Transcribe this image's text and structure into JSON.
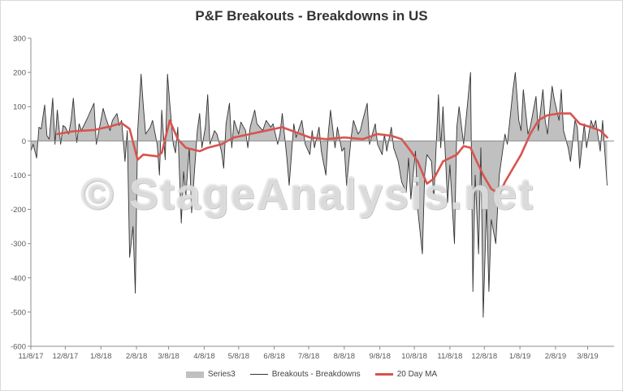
{
  "chart_data": {
    "type": "area",
    "title": "P&F Breakouts - Breakdowns in US",
    "xlabel": "",
    "ylabel": "",
    "ylim": [
      -600,
      300
    ],
    "yticks": [
      300,
      200,
      100,
      0,
      -100,
      -200,
      -300,
      -400,
      -500,
      -600
    ],
    "x_tick_labels": [
      "11/8/17",
      "12/8/17",
      "1/8/18",
      "2/8/18",
      "3/8/18",
      "4/8/18",
      "5/8/18",
      "6/8/18",
      "7/8/18",
      "8/8/18",
      "9/8/18",
      "10/8/18",
      "11/8/18",
      "12/8/18",
      "1/8/19",
      "2/8/19",
      "3/8/19"
    ],
    "x_range": [
      "2017-11-08",
      "2019-03-31"
    ],
    "grid": false,
    "legend_position": "bottom",
    "watermark": "© StageAnalysis.net",
    "colors": {
      "area": "#c0c0c0",
      "line": "#333333",
      "ma": "#d9534f"
    },
    "series": [
      {
        "name": "Series3",
        "style": "area",
        "points": [
          [
            "2017-11-08",
            -30
          ],
          [
            "2017-11-10",
            -10
          ],
          [
            "2017-11-13",
            -50
          ],
          [
            "2017-11-15",
            40
          ],
          [
            "2017-11-17",
            35
          ],
          [
            "2017-11-20",
            105
          ],
          [
            "2017-11-22",
            15
          ],
          [
            "2017-11-24",
            5
          ],
          [
            "2017-11-27",
            125
          ],
          [
            "2017-11-29",
            -10
          ],
          [
            "2017-12-01",
            90
          ],
          [
            "2017-12-04",
            -10
          ],
          [
            "2017-12-06",
            45
          ],
          [
            "2017-12-08",
            40
          ],
          [
            "2017-12-11",
            20
          ],
          [
            "2017-12-13",
            60
          ],
          [
            "2017-12-15",
            125
          ],
          [
            "2017-12-18",
            -5
          ],
          [
            "2017-12-20",
            50
          ],
          [
            "2017-12-22",
            30
          ],
          [
            "2017-12-27",
            65
          ],
          [
            "2018-01-02",
            110
          ],
          [
            "2018-01-04",
            -10
          ],
          [
            "2018-01-08",
            60
          ],
          [
            "2018-01-10",
            95
          ],
          [
            "2018-01-12",
            70
          ],
          [
            "2018-01-16",
            30
          ],
          [
            "2018-01-18",
            60
          ],
          [
            "2018-01-22",
            80
          ],
          [
            "2018-01-24",
            45
          ],
          [
            "2018-01-26",
            60
          ],
          [
            "2018-01-29",
            -60
          ],
          [
            "2018-01-31",
            30
          ],
          [
            "2018-02-02",
            -340
          ],
          [
            "2018-02-05",
            -250
          ],
          [
            "2018-02-07",
            -445
          ],
          [
            "2018-02-09",
            25
          ],
          [
            "2018-02-12",
            195
          ],
          [
            "2018-02-14",
            100
          ],
          [
            "2018-02-16",
            20
          ],
          [
            "2018-02-20",
            40
          ],
          [
            "2018-02-22",
            60
          ],
          [
            "2018-02-26",
            -10
          ],
          [
            "2018-02-28",
            -100
          ],
          [
            "2018-03-02",
            90
          ],
          [
            "2018-03-05",
            -55
          ],
          [
            "2018-03-07",
            195
          ],
          [
            "2018-03-09",
            110
          ],
          [
            "2018-03-12",
            -10
          ],
          [
            "2018-03-14",
            -35
          ],
          [
            "2018-03-16",
            40
          ],
          [
            "2018-03-19",
            -240
          ],
          [
            "2018-03-21",
            -90
          ],
          [
            "2018-03-23",
            -160
          ],
          [
            "2018-03-26",
            -20
          ],
          [
            "2018-03-28",
            -210
          ],
          [
            "2018-04-02",
            30
          ],
          [
            "2018-04-04",
            80
          ],
          [
            "2018-04-06",
            -20
          ],
          [
            "2018-04-09",
            40
          ],
          [
            "2018-04-11",
            135
          ],
          [
            "2018-04-13",
            -10
          ],
          [
            "2018-04-17",
            30
          ],
          [
            "2018-04-19",
            20
          ],
          [
            "2018-04-23",
            -30
          ],
          [
            "2018-04-25",
            -80
          ],
          [
            "2018-04-27",
            50
          ],
          [
            "2018-04-30",
            110
          ],
          [
            "2018-05-02",
            -20
          ],
          [
            "2018-05-04",
            60
          ],
          [
            "2018-05-08",
            20
          ],
          [
            "2018-05-10",
            55
          ],
          [
            "2018-05-14",
            30
          ],
          [
            "2018-05-16",
            -20
          ],
          [
            "2018-05-18",
            40
          ],
          [
            "2018-05-22",
            90
          ],
          [
            "2018-05-24",
            50
          ],
          [
            "2018-05-29",
            30
          ],
          [
            "2018-06-01",
            60
          ],
          [
            "2018-06-05",
            40
          ],
          [
            "2018-06-07",
            50
          ],
          [
            "2018-06-11",
            -10
          ],
          [
            "2018-06-13",
            20
          ],
          [
            "2018-06-15",
            80
          ],
          [
            "2018-06-19",
            -50
          ],
          [
            "2018-06-21",
            -130
          ],
          [
            "2018-06-25",
            50
          ],
          [
            "2018-06-27",
            10
          ],
          [
            "2018-07-02",
            60
          ],
          [
            "2018-07-05",
            -10
          ],
          [
            "2018-07-09",
            -40
          ],
          [
            "2018-07-11",
            30
          ],
          [
            "2018-07-13",
            -20
          ],
          [
            "2018-07-17",
            40
          ],
          [
            "2018-07-19",
            -30
          ],
          [
            "2018-07-23",
            -100
          ],
          [
            "2018-07-25",
            20
          ],
          [
            "2018-07-27",
            90
          ],
          [
            "2018-07-31",
            -20
          ],
          [
            "2018-08-02",
            40
          ],
          [
            "2018-08-06",
            -30
          ],
          [
            "2018-08-08",
            -20
          ],
          [
            "2018-08-10",
            -130
          ],
          [
            "2018-08-14",
            10
          ],
          [
            "2018-08-16",
            60
          ],
          [
            "2018-08-20",
            20
          ],
          [
            "2018-08-22",
            30
          ],
          [
            "2018-08-24",
            60
          ],
          [
            "2018-08-28",
            110
          ],
          [
            "2018-08-30",
            -10
          ],
          [
            "2018-09-04",
            50
          ],
          [
            "2018-09-06",
            -10
          ],
          [
            "2018-09-10",
            -40
          ],
          [
            "2018-09-12",
            20
          ],
          [
            "2018-09-14",
            -30
          ],
          [
            "2018-09-18",
            40
          ],
          [
            "2018-09-20",
            -20
          ],
          [
            "2018-09-24",
            -60
          ],
          [
            "2018-09-27",
            -120
          ],
          [
            "2018-10-01",
            -150
          ],
          [
            "2018-10-03",
            -50
          ],
          [
            "2018-10-05",
            -170
          ],
          [
            "2018-10-09",
            -30
          ],
          [
            "2018-10-11",
            -200
          ],
          [
            "2018-10-15",
            -330
          ],
          [
            "2018-10-17",
            -100
          ],
          [
            "2018-10-19",
            -40
          ],
          [
            "2018-10-23",
            -60
          ],
          [
            "2018-10-25",
            -170
          ],
          [
            "2018-10-29",
            135
          ],
          [
            "2018-10-31",
            -20
          ],
          [
            "2018-11-02",
            100
          ],
          [
            "2018-11-06",
            -180
          ],
          [
            "2018-11-08",
            -70
          ],
          [
            "2018-11-12",
            -300
          ],
          [
            "2018-11-14",
            40
          ],
          [
            "2018-11-16",
            100
          ],
          [
            "2018-11-20",
            -10
          ],
          [
            "2018-11-26",
            200
          ],
          [
            "2018-11-28",
            -440
          ],
          [
            "2018-11-30",
            -100
          ],
          [
            "2018-12-03",
            -330
          ],
          [
            "2018-12-05",
            -20
          ],
          [
            "2018-12-07",
            -515
          ],
          [
            "2018-12-10",
            -180
          ],
          [
            "2018-12-12",
            -440
          ],
          [
            "2018-12-14",
            -230
          ],
          [
            "2018-12-18",
            -300
          ],
          [
            "2018-12-21",
            -100
          ],
          [
            "2018-12-26",
            20
          ],
          [
            "2018-12-28",
            -10
          ],
          [
            "2019-01-02",
            150
          ],
          [
            "2019-01-04",
            200
          ],
          [
            "2019-01-07",
            60
          ],
          [
            "2019-01-09",
            30
          ],
          [
            "2019-01-11",
            150
          ],
          [
            "2019-01-15",
            20
          ],
          [
            "2019-01-17",
            40
          ],
          [
            "2019-01-22",
            130
          ],
          [
            "2019-01-24",
            30
          ],
          [
            "2019-01-28",
            150
          ],
          [
            "2019-01-30",
            60
          ],
          [
            "2019-02-01",
            20
          ],
          [
            "2019-02-05",
            160
          ],
          [
            "2019-02-07",
            120
          ],
          [
            "2019-02-11",
            60
          ],
          [
            "2019-02-13",
            150
          ],
          [
            "2019-02-15",
            30
          ],
          [
            "2019-02-19",
            -20
          ],
          [
            "2019-02-21",
            -60
          ],
          [
            "2019-02-25",
            60
          ],
          [
            "2019-02-27",
            40
          ],
          [
            "2019-03-01",
            -80
          ],
          [
            "2019-03-05",
            50
          ],
          [
            "2019-03-07",
            -20
          ],
          [
            "2019-03-11",
            60
          ],
          [
            "2019-03-13",
            40
          ],
          [
            "2019-03-15",
            60
          ],
          [
            "2019-03-19",
            -30
          ],
          [
            "2019-03-21",
            60
          ],
          [
            "2019-03-25",
            -130
          ]
        ]
      },
      {
        "name": "Breakouts - Breakdowns",
        "style": "line",
        "same_as": "Series3"
      },
      {
        "name": "20 Day MA",
        "style": "line",
        "points": [
          [
            "2017-12-01",
            20
          ],
          [
            "2017-12-15",
            28
          ],
          [
            "2018-01-02",
            32
          ],
          [
            "2018-01-16",
            42
          ],
          [
            "2018-01-26",
            52
          ],
          [
            "2018-02-02",
            35
          ],
          [
            "2018-02-09",
            -55
          ],
          [
            "2018-02-14",
            -40
          ],
          [
            "2018-02-26",
            -45
          ],
          [
            "2018-03-02",
            -35
          ],
          [
            "2018-03-09",
            60
          ],
          [
            "2018-03-16",
            5
          ],
          [
            "2018-03-23",
            -20
          ],
          [
            "2018-04-04",
            -30
          ],
          [
            "2018-04-11",
            -20
          ],
          [
            "2018-04-23",
            -10
          ],
          [
            "2018-05-04",
            10
          ],
          [
            "2018-05-18",
            20
          ],
          [
            "2018-06-01",
            30
          ],
          [
            "2018-06-15",
            40
          ],
          [
            "2018-06-27",
            25
          ],
          [
            "2018-07-09",
            10
          ],
          [
            "2018-07-23",
            5
          ],
          [
            "2018-08-08",
            10
          ],
          [
            "2018-08-24",
            5
          ],
          [
            "2018-09-06",
            20
          ],
          [
            "2018-09-18",
            15
          ],
          [
            "2018-09-27",
            5
          ],
          [
            "2018-10-05",
            -30
          ],
          [
            "2018-10-11",
            -60
          ],
          [
            "2018-10-19",
            -125
          ],
          [
            "2018-10-25",
            -110
          ],
          [
            "2018-11-02",
            -60
          ],
          [
            "2018-11-08",
            -50
          ],
          [
            "2018-11-14",
            -40
          ],
          [
            "2018-11-20",
            -15
          ],
          [
            "2018-11-26",
            -20
          ],
          [
            "2018-11-30",
            -50
          ],
          [
            "2018-12-07",
            -100
          ],
          [
            "2018-12-14",
            -140
          ],
          [
            "2018-12-21",
            -155
          ],
          [
            "2018-12-26",
            -120
          ],
          [
            "2019-01-02",
            -80
          ],
          [
            "2019-01-09",
            -40
          ],
          [
            "2019-01-17",
            20
          ],
          [
            "2019-01-24",
            60
          ],
          [
            "2019-02-01",
            75
          ],
          [
            "2019-02-11",
            80
          ],
          [
            "2019-02-21",
            80
          ],
          [
            "2019-03-01",
            50
          ],
          [
            "2019-03-11",
            40
          ],
          [
            "2019-03-19",
            30
          ],
          [
            "2019-03-25",
            10
          ]
        ]
      }
    ],
    "legend": [
      {
        "label": "Series3",
        "style": "area"
      },
      {
        "label": "Breakouts - Breakdowns",
        "style": "thin-line"
      },
      {
        "label": "20 Day MA",
        "style": "thick-line"
      }
    ]
  }
}
